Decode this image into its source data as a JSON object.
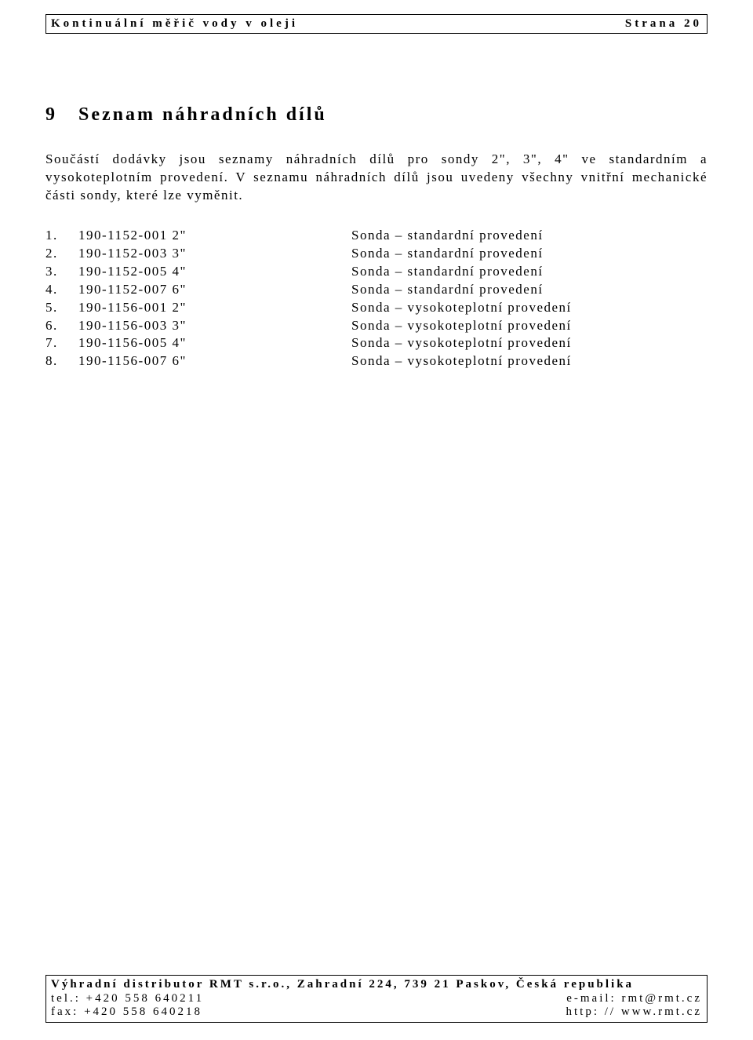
{
  "header": {
    "left": "Kontinuální měřič vody v oleji",
    "right": "Strana 20"
  },
  "section_number": "9",
  "section_title": "Seznam náhradních dílů",
  "paragraph1": "Součástí dodávky jsou seznamy náhradních dílů pro sondy 2\", 3\", 4\" ve standardním a vysokoteplotním provedení. V seznamu náhradních dílů jsou uvedeny všechny vnitřní mechanické části sondy, které lze vyměnit.",
  "parts": [
    {
      "num": "1.",
      "code": "190-1152-001 2\"",
      "desc": "Sonda – standardní provedení"
    },
    {
      "num": "2.",
      "code": "190-1152-003 3\"",
      "desc": "Sonda – standardní provedení"
    },
    {
      "num": "3.",
      "code": "190-1152-005 4\"",
      "desc": "Sonda – standardní provedení"
    },
    {
      "num": "4.",
      "code": "190-1152-007 6\"",
      "desc": "Sonda – standardní provedení"
    },
    {
      "num": "5.",
      "code": "190-1156-001 2\"",
      "desc": "Sonda – vysokoteplotní provedení"
    },
    {
      "num": "6.",
      "code": "190-1156-003 3\"",
      "desc": "Sonda – vysokoteplotní provedení"
    },
    {
      "num": "7.",
      "code": "190-1156-005 4\"",
      "desc": "Sonda – vysokoteplotní provedení"
    },
    {
      "num": "8.",
      "code": "190-1156-007 6\"",
      "desc": "Sonda – vysokoteplotní provedení"
    }
  ],
  "footer": {
    "top": "Výhradní distributor RMT s.r.o., Zahradní 224, 739 21 Paskov, Česká republika",
    "tel": "tel.: +420 558 640211",
    "email": "e-mail: rmt@rmt.cz",
    "fax": "fax: +420 558 640218",
    "web": "http: // www.rmt.cz"
  }
}
